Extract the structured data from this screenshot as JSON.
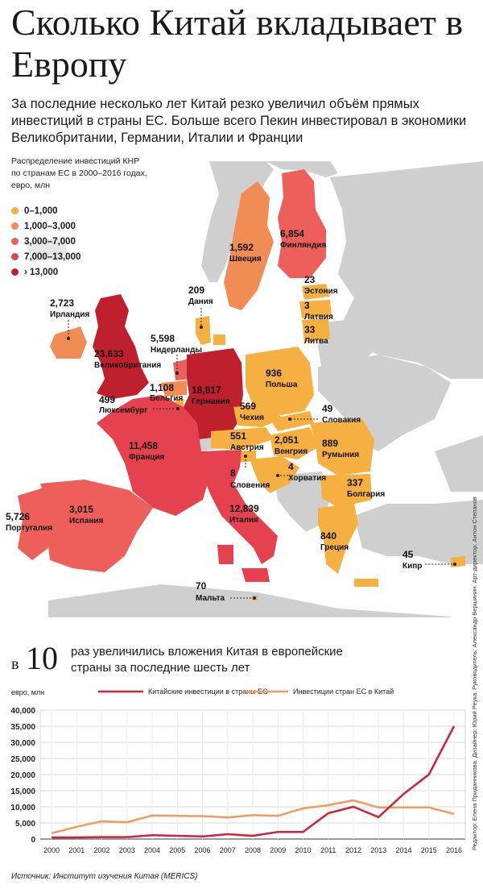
{
  "title": "Сколько Китай вкладывает в Европу",
  "subtitle": "За последние несколько лет Китай резко увеличил объём прямых инвестиций в страны ЕС. Больше всего Пекин инвестировал в экономики Великобритании, Германии, Италии и Франции",
  "legend": {
    "title": "Распределение инвестиций КНР по странам ЕС в 2000–2016 годах, евро, млн",
    "items": [
      {
        "label": "0–1,000",
        "color": "#f5b041"
      },
      {
        "label": "1,000–3,000",
        "color": "#f28c55"
      },
      {
        "label": "3,000–7,000",
        "color": "#ee5f5b"
      },
      {
        "label": "7,000–13,000",
        "color": "#e6414f"
      },
      {
        "label": "› 13,000",
        "color": "#c0202e"
      }
    ]
  },
  "countries": [
    {
      "name": "Финляндия",
      "value": "6,854"
    },
    {
      "name": "Швеция",
      "value": "1,592"
    },
    {
      "name": "Эстония",
      "value": "23"
    },
    {
      "name": "Латвия",
      "value": "3"
    },
    {
      "name": "Литва",
      "value": "33"
    },
    {
      "name": "Дания",
      "value": "209"
    },
    {
      "name": "Ирландия",
      "value": "2,723"
    },
    {
      "name": "Великобритания",
      "value": "23,633"
    },
    {
      "name": "Нидерланды",
      "value": "5,598"
    },
    {
      "name": "Бельгия",
      "value": "1,108"
    },
    {
      "name": "Люксембург",
      "value": "499"
    },
    {
      "name": "Германия",
      "value": "18,817"
    },
    {
      "name": "Польша",
      "value": "936"
    },
    {
      "name": "Чехия",
      "value": "569"
    },
    {
      "name": "Словакия",
      "value": "49"
    },
    {
      "name": "Австрия",
      "value": "551"
    },
    {
      "name": "Венгрия",
      "value": "2,051"
    },
    {
      "name": "Румыния",
      "value": "889"
    },
    {
      "name": "Франция",
      "value": "11,458"
    },
    {
      "name": "Словения",
      "value": "8"
    },
    {
      "name": "Хорватия",
      "value": "4"
    },
    {
      "name": "Болгария",
      "value": "337"
    },
    {
      "name": "Португалия",
      "value": "5,726"
    },
    {
      "name": "Испания",
      "value": "3,015"
    },
    {
      "name": "Италия",
      "value": "12,839"
    },
    {
      "name": "Греция",
      "value": "840"
    },
    {
      "name": "Кипр",
      "value": "45"
    },
    {
      "name": "Мальта",
      "value": "70"
    }
  ],
  "headline": {
    "prefix": "в",
    "number": "10",
    "text": "раз увеличились вложения Китая в европейские страны за последние шесть лет"
  },
  "chart_data": {
    "type": "line",
    "ylabel": "евро, млн",
    "x": [
      2000,
      2001,
      2002,
      2003,
      2004,
      2005,
      2006,
      2007,
      2008,
      2009,
      2010,
      2011,
      2012,
      2013,
      2014,
      2015,
      2016
    ],
    "ylim": [
      0,
      40000
    ],
    "yticks": [
      "0",
      "5,000",
      "10,000",
      "15,000",
      "20,000",
      "25,000",
      "30,000",
      "35,000",
      "40,000"
    ],
    "series": [
      {
        "name": "Китайские инвестиции в страны ЕС",
        "color": "#d0213a",
        "values": [
          500,
          500,
          600,
          600,
          1200,
          1000,
          800,
          1500,
          1000,
          2200,
          2200,
          8000,
          10000,
          6800,
          14000,
          20000,
          35000
        ]
      },
      {
        "name": "Инвестиции стран ЕС в Китай",
        "color": "#f39a5d",
        "values": [
          1800,
          3800,
          5500,
          5200,
          7300,
          7200,
          7100,
          6700,
          7400,
          7200,
          9500,
          10500,
          12000,
          9800,
          9800,
          9800,
          7800
        ]
      }
    ]
  },
  "credit": "Редактор: Елена Приданникова. Дизайнер: Юрий Реука. Руководитель: Александр Вершинин. Арт-директор: Антон Степанов",
  "source": {
    "label": "Источник:",
    "text": "Институт изучения Китая (MERICS)"
  }
}
